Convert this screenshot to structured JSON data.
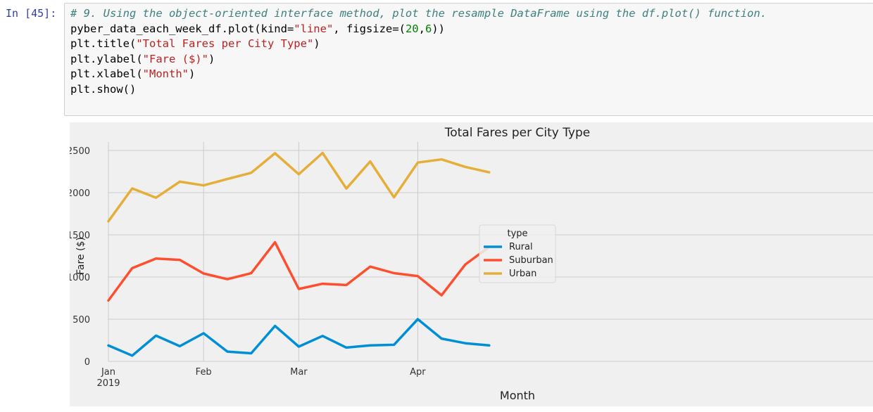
{
  "notebook": {
    "prompt": "In [45]:",
    "code_lines": [
      [
        {
          "t": "# 9. Using the object-oriented interface method, plot the resample DataFrame using the df.plot() function.",
          "c": "comment"
        }
      ],
      [
        {
          "t": "pyber_data_each_week_df.plot(kind=",
          "c": ""
        },
        {
          "t": "\"line\"",
          "c": "str"
        },
        {
          "t": ", figsize=(",
          "c": ""
        },
        {
          "t": "20",
          "c": "num"
        },
        {
          "t": ",",
          "c": ""
        },
        {
          "t": "6",
          "c": "num"
        },
        {
          "t": "))",
          "c": ""
        }
      ],
      [
        {
          "t": "plt.title(",
          "c": ""
        },
        {
          "t": "\"Total Fares per City Type\"",
          "c": "str"
        },
        {
          "t": ")",
          "c": ""
        }
      ],
      [
        {
          "t": "plt.ylabel(",
          "c": ""
        },
        {
          "t": "\"Fare ($)\"",
          "c": "str"
        },
        {
          "t": ")",
          "c": ""
        }
      ],
      [
        {
          "t": "plt.xlabel(",
          "c": ""
        },
        {
          "t": "\"Month\"",
          "c": "str"
        },
        {
          "t": ")",
          "c": ""
        }
      ],
      [
        {
          "t": "plt.show()",
          "c": ""
        }
      ]
    ]
  },
  "chart_data": {
    "type": "line",
    "title": "Total Fares per City Type",
    "xlabel": "Month",
    "ylabel": "Fare ($)",
    "ylim": [
      0,
      2600
    ],
    "yticks": [
      0,
      500,
      1000,
      1500,
      2000,
      2500
    ],
    "xticks": [
      {
        "index": 0,
        "label": "Jan",
        "sublabel": "2019"
      },
      {
        "index": 4,
        "label": "Feb",
        "sublabel": ""
      },
      {
        "index": 8,
        "label": "Mar",
        "sublabel": ""
      },
      {
        "index": 13,
        "label": "Apr",
        "sublabel": ""
      }
    ],
    "x": [
      "2019-01-06",
      "2019-01-13",
      "2019-01-20",
      "2019-01-27",
      "2019-02-03",
      "2019-02-10",
      "2019-02-17",
      "2019-02-24",
      "2019-03-03",
      "2019-03-10",
      "2019-03-17",
      "2019-03-24",
      "2019-03-31",
      "2019-04-07",
      "2019-04-14",
      "2019-04-21",
      "2019-04-28"
    ],
    "grid": true,
    "legend": {
      "title": "type",
      "placement": "center"
    },
    "series": [
      {
        "name": "Rural",
        "color": "#008fd5",
        "values": [
          188,
          68,
          305,
          180,
          333,
          116,
          96,
          420,
          175,
          302,
          163,
          190,
          197,
          500,
          270,
          215,
          190
        ]
      },
      {
        "name": "Suburban",
        "color": "#fc4f30",
        "values": [
          722,
          1105,
          1218,
          1203,
          1042,
          974,
          1045,
          1412,
          858,
          920,
          905,
          1123,
          1046,
          1011,
          783,
          1149,
          1357
        ]
      },
      {
        "name": "Urban",
        "color": "#e5ae38",
        "values": [
          1661,
          2050,
          1940,
          2130,
          2086,
          2162,
          2235,
          2467,
          2218,
          2471,
          2048,
          2370,
          1944,
          2357,
          2394,
          2305,
          2241
        ]
      }
    ]
  }
}
